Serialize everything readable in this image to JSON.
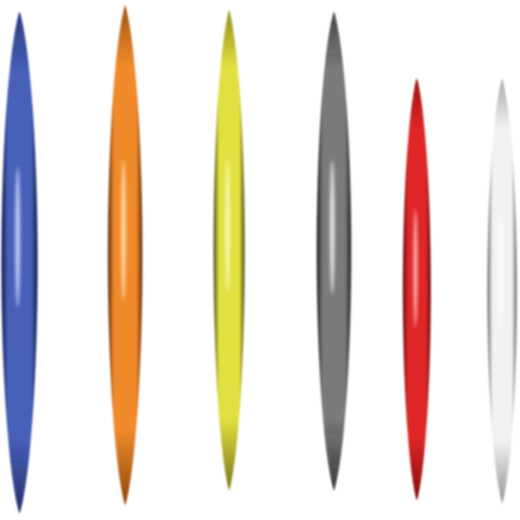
{
  "scene": {
    "background": "#ffffff",
    "shapes": [
      {
        "name": "blue-lens-shape",
        "color": "#4660b8",
        "shadow": "#151a4a",
        "highlight": "#c9d6ff"
      },
      {
        "name": "orange-lens-shape",
        "color": "#f08a2c",
        "shadow": "#5a2a0a",
        "highlight": "#ffe0b0"
      },
      {
        "name": "yellow-lens-shape",
        "color": "#e2e040",
        "shadow": "#4a4510",
        "highlight": "#fffcc0"
      },
      {
        "name": "gray-lens-shape",
        "color": "#7a7a7a",
        "shadow": "#1e1e1e",
        "highlight": "#f2f2f2"
      },
      {
        "name": "red-lens-shape",
        "color": "#e02828",
        "shadow": "#5a0808",
        "highlight": "#ffc8c8"
      },
      {
        "name": "white-lens-shape",
        "color": "#f2f2f2",
        "shadow": "#6a6a6a",
        "highlight": "#ffffff"
      }
    ]
  }
}
